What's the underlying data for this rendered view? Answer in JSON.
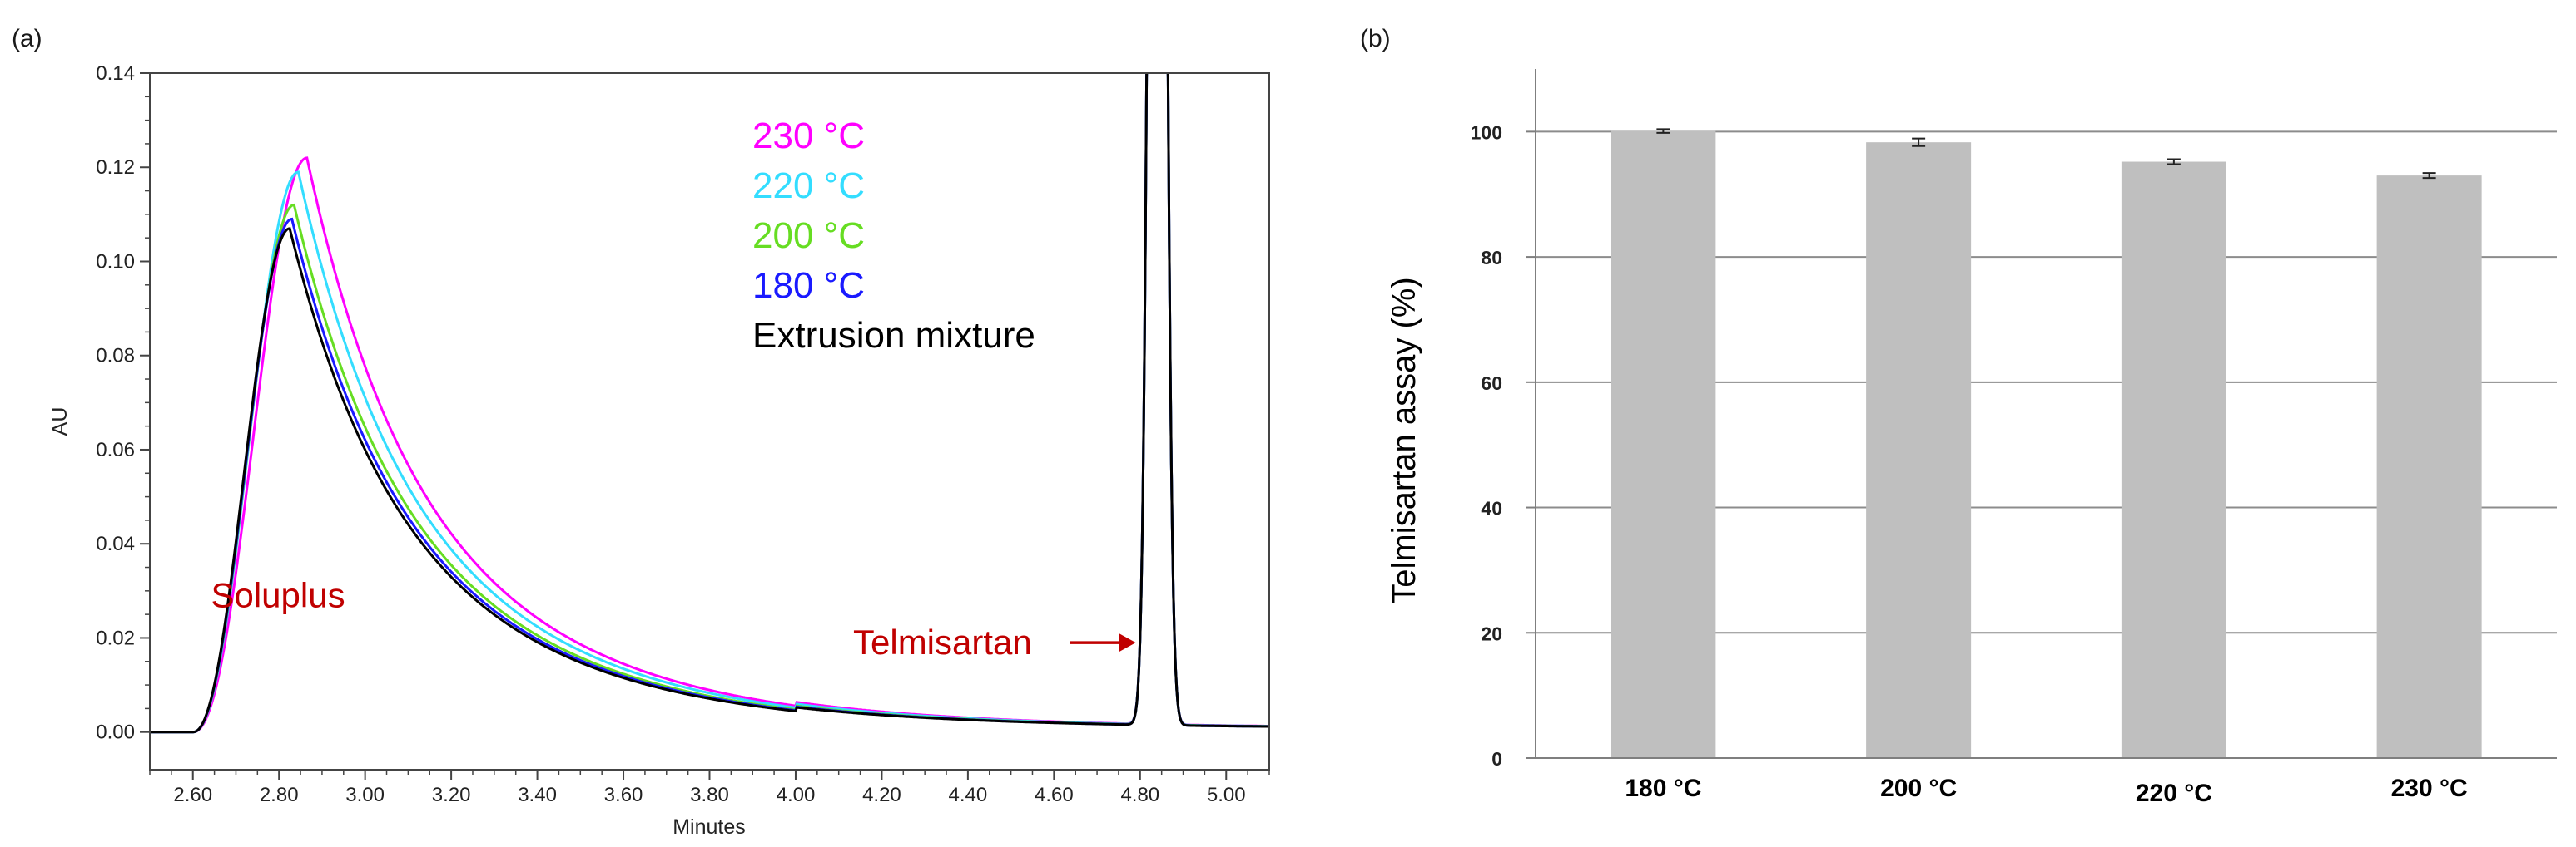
{
  "panel_a_label": "(a)",
  "panel_b_label": "(b)",
  "chart_data": [
    {
      "type": "line",
      "panel": "(a)",
      "title": "",
      "xlabel": "Minutes",
      "ylabel": "AU",
      "xlim": [
        2.5,
        5.1
      ],
      "ylim": [
        -0.008,
        0.14
      ],
      "x_ticks": [
        "2.60",
        "2.80",
        "3.00",
        "3.20",
        "3.40",
        "3.60",
        "3.80",
        "4.00",
        "4.20",
        "4.40",
        "4.60",
        "4.80",
        "5.00"
      ],
      "y_ticks": [
        "0.00",
        "0.02",
        "0.04",
        "0.06",
        "0.08",
        "0.10",
        "0.12",
        "0.14"
      ],
      "series": [
        {
          "name": "230 °C",
          "color": "#ff00ff",
          "soluplus_peak_time": 2.865,
          "soluplus_peak_height": 0.122
        },
        {
          "name": "220 °C",
          "color": "#33ddff",
          "soluplus_peak_time": 2.845,
          "soluplus_peak_height": 0.119
        },
        {
          "name": "200 °C",
          "color": "#66dd22",
          "soluplus_peak_time": 2.835,
          "soluplus_peak_height": 0.112
        },
        {
          "name": "180 °C",
          "color": "#1a1aff",
          "soluplus_peak_time": 2.83,
          "soluplus_peak_height": 0.109
        },
        {
          "name": "Extrusion mixture",
          "color": "#000000",
          "soluplus_peak_time": 2.825,
          "soluplus_peak_height": 0.107
        }
      ],
      "telmisartan_peak": {
        "start": 4.8,
        "end": 4.88,
        "height_exceeds": 0.14
      },
      "annotations": [
        {
          "text": "Soluplus",
          "x": 2.7,
          "y": 0.029
        },
        {
          "text": "Telmisartan",
          "arrow_to_x": 4.79,
          "y": 0.019
        }
      ]
    },
    {
      "type": "bar",
      "panel": "(b)",
      "title": "",
      "xlabel": "",
      "ylabel": "Telmisartan assay (%)",
      "ylim": [
        0,
        110
      ],
      "y_ticks": [
        "0",
        "20",
        "40",
        "60",
        "80",
        "100"
      ],
      "categories": [
        "180 °C",
        "200 °C",
        "220 °C",
        "230 °C"
      ],
      "values": [
        100.1,
        98.3,
        95.2,
        93.0
      ],
      "errors": [
        0.3,
        0.6,
        0.4,
        0.4
      ],
      "bar_color": "#bfbfbf",
      "grid": true
    }
  ]
}
